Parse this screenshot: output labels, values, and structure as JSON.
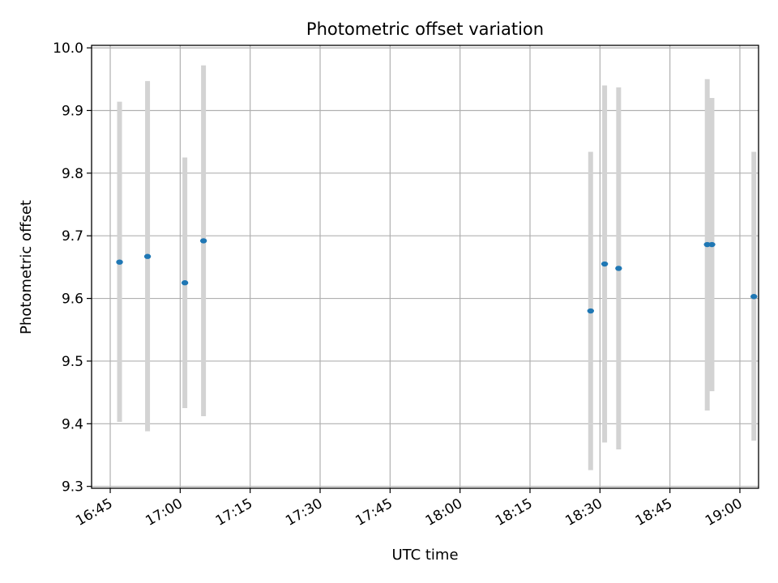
{
  "chart_data": {
    "type": "scatter",
    "title": "Photometric offset variation",
    "xlabel": "UTC time",
    "ylabel": "Photometric offset",
    "xlim": [
      "16:41",
      "19:04"
    ],
    "ylim": [
      9.297,
      10.004
    ],
    "x_ticks": [
      "16:45",
      "17:00",
      "17:15",
      "17:30",
      "17:45",
      "18:00",
      "18:15",
      "18:30",
      "18:45",
      "19:00"
    ],
    "y_ticks": [
      "9.3",
      "9.4",
      "9.5",
      "9.6",
      "9.7",
      "9.8",
      "9.9",
      "10.0"
    ],
    "grid": true,
    "marker_color": "#1f77b4",
    "errorbar_color": "#d3d3d3",
    "points": [
      {
        "x": "16:47",
        "y": 9.658,
        "ylo": 9.403,
        "yhi": 9.914
      },
      {
        "x": "16:53",
        "y": 9.667,
        "ylo": 9.388,
        "yhi": 9.947
      },
      {
        "x": "17:01",
        "y": 9.625,
        "ylo": 9.425,
        "yhi": 9.825
      },
      {
        "x": "17:05",
        "y": 9.692,
        "ylo": 9.412,
        "yhi": 9.972
      },
      {
        "x": "18:28",
        "y": 9.58,
        "ylo": 9.326,
        "yhi": 9.834
      },
      {
        "x": "18:31",
        "y": 9.655,
        "ylo": 9.37,
        "yhi": 9.94
      },
      {
        "x": "18:34",
        "y": 9.648,
        "ylo": 9.359,
        "yhi": 9.937
      },
      {
        "x": "18:53",
        "y": 9.686,
        "ylo": 9.421,
        "yhi": 9.95
      },
      {
        "x": "18:54",
        "y": 9.686,
        "ylo": 9.452,
        "yhi": 9.92
      },
      {
        "x": "19:03",
        "y": 9.603,
        "ylo": 9.373,
        "yhi": 9.834
      }
    ]
  }
}
